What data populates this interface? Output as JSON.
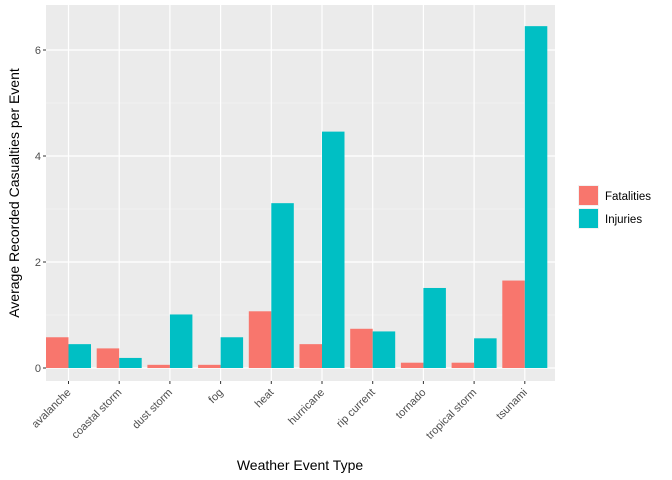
{
  "chart_data": {
    "type": "bar",
    "title": "",
    "xlabel": "Weather Event Type",
    "ylabel": "Average Recorded Casualties per Event",
    "categories": [
      "avalanche",
      "coastal storm",
      "dust storm",
      "fog",
      "heat",
      "hurricane",
      "rip current",
      "tornado",
      "tropical storm",
      "tsunami"
    ],
    "series": [
      {
        "name": "Fatalities",
        "color": "#F8766D",
        "values": [
          0.58,
          0.37,
          0.06,
          0.06,
          1.07,
          0.45,
          0.74,
          0.1,
          0.1,
          1.65
        ]
      },
      {
        "name": "Injuries",
        "color": "#00BFC4",
        "values": [
          0.45,
          0.19,
          1.01,
          0.58,
          3.11,
          4.46,
          0.69,
          1.51,
          0.56,
          6.45
        ]
      }
    ],
    "ylim": [
      0,
      6.85
    ],
    "yticks": [
      0,
      2,
      4,
      6
    ],
    "grid": true,
    "legend_position": "right",
    "x_tick_rotation": 45
  }
}
